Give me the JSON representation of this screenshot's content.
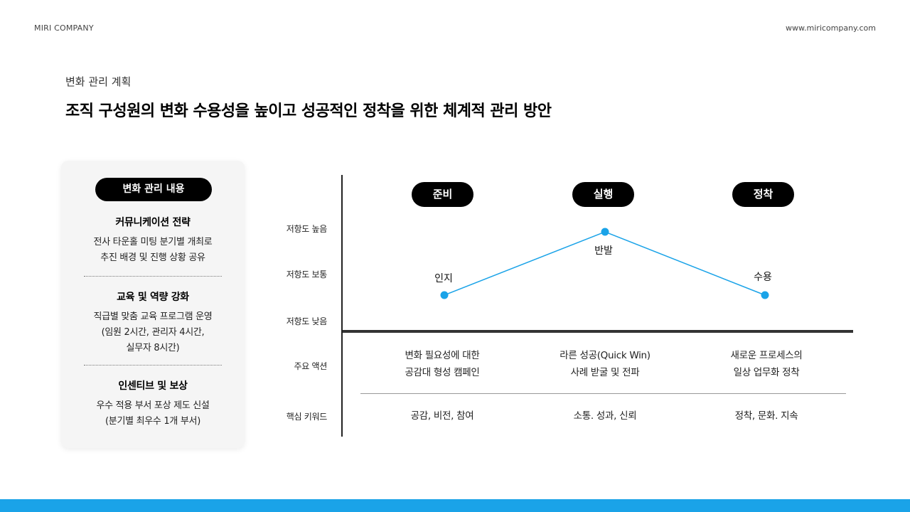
{
  "header": {
    "brand": "MIRI COMPANY",
    "website": "www.miricompany.com"
  },
  "slide": {
    "subtitle": "변화 관리 계획",
    "title": "조직 구성원의 변화 수용성을 높이고 성공적인 정착을 위한 체계적 관리 방안"
  },
  "panel": {
    "header": "변화 관리 내용",
    "items": [
      {
        "title": "커뮤니케이션 전략",
        "lines": [
          "전사 타운홀 미팅 분기별 개최로",
          "추진 배경 및 진행 상황 공유"
        ]
      },
      {
        "title": "교육 및 역량 강화",
        "lines": [
          "직급별 맞춤 교육 프로그램 운영",
          "(임원 2시간, 관리자 4시간,",
          "실무자 8시간)"
        ]
      },
      {
        "title": "인센티브 및 보상",
        "lines": [
          "우수 적용 부서 포상 제도 신설",
          "(분기별 최우수 1개 부서)"
        ]
      }
    ]
  },
  "chart": {
    "y_labels": [
      "저항도 높음",
      "저항도 보통",
      "저항도 낮음"
    ],
    "row_labels": [
      "주요 액션",
      "핵심 키워드"
    ],
    "phases": [
      "준비",
      "실행",
      "정착"
    ],
    "line_color": "#1aa3e8",
    "points": [
      {
        "phase": "준비",
        "level": "저항도 낮음",
        "label": "인지"
      },
      {
        "phase": "실행",
        "level": "저항도 높음",
        "label": "반발"
      },
      {
        "phase": "정착",
        "level": "저항도 낮음",
        "label": "수용"
      }
    ],
    "actions": [
      [
        "변화 필요성에 대한",
        "공감대 형성 캠페인"
      ],
      [
        "라른 성공(Quick Win)",
        "사례 받굴 및 전파"
      ],
      [
        "새로운 프로세스의",
        "일상 업무화 정착"
      ]
    ],
    "keywords": [
      "공감, 비전, 참여",
      "소통. 성과, 신뢰",
      "정착, 문화. 지속"
    ]
  },
  "footer": {
    "bar_color": "#1aa3e8"
  }
}
